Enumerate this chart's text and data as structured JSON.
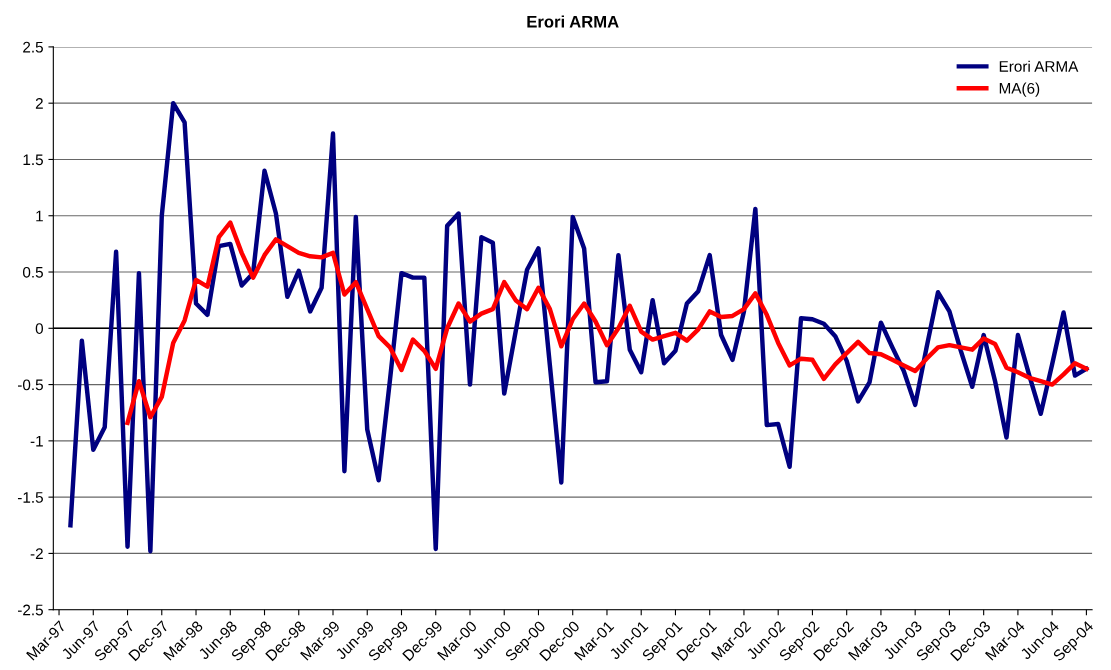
{
  "chart_data": {
    "type": "line",
    "title": "Erori ARMA",
    "categories": [
      "Mar-97",
      null,
      null,
      "Jun-97",
      null,
      null,
      "Sep-97",
      null,
      null,
      "Dec-97",
      null,
      null,
      "Mar-98",
      null,
      null,
      "Jun-98",
      null,
      null,
      "Sep-98",
      null,
      null,
      "Dec-98",
      null,
      null,
      "Mar-99",
      null,
      null,
      "Jun-99",
      null,
      null,
      "Sep-99",
      null,
      null,
      "Dec-99",
      null,
      null,
      "Mar-00",
      null,
      null,
      "Jun-00",
      null,
      null,
      "Sep-00",
      null,
      null,
      "Dec-00",
      null,
      null,
      "Mar-01",
      null,
      null,
      "Jun-01",
      null,
      null,
      "Sep-01",
      null,
      null,
      "Dec-01",
      null,
      null,
      "Mar-02",
      null,
      null,
      "Jun-02",
      null,
      null,
      "Sep-02",
      null,
      null,
      "Dec-02",
      null,
      null,
      "Mar-03",
      null,
      null,
      "Jun-03",
      null,
      null,
      "Sep-03",
      null,
      null,
      "Dec-03",
      null,
      null,
      "Mar-04",
      null,
      null,
      "Jun-04",
      null,
      null,
      "Sep-04"
    ],
    "series": [
      {
        "name": "Erori ARMA",
        "color": "#000080",
        "values": [
          null,
          -1.75,
          -0.11,
          -1.08,
          -0.88,
          0.68,
          -1.94,
          0.49,
          -1.98,
          1.0,
          2.0,
          1.83,
          0.22,
          0.12,
          0.73,
          0.75,
          0.38,
          0.49,
          1.4,
          1.02,
          0.28,
          0.51,
          0.15,
          0.36,
          1.73,
          -1.27,
          0.99,
          -0.9,
          -1.35,
          -0.45,
          0.49,
          0.45,
          0.45,
          -1.96,
          0.91,
          1.02,
          -0.5,
          0.81,
          0.76,
          -0.58,
          -0.03,
          0.52,
          0.71,
          -0.33,
          -1.37,
          0.99,
          0.71,
          -0.48,
          -0.47,
          0.65,
          -0.19,
          -0.39,
          0.25,
          -0.31,
          -0.2,
          0.22,
          0.33,
          0.65,
          -0.06,
          -0.28,
          0.15,
          1.06,
          -0.86,
          -0.85,
          -1.23,
          0.09,
          0.08,
          0.04,
          -0.07,
          -0.29,
          -0.65,
          -0.48,
          0.05,
          -0.17,
          -0.38,
          -0.68,
          -0.17,
          0.32,
          0.15,
          -0.2,
          -0.52,
          -0.06,
          -0.47,
          -0.97,
          -0.06,
          -0.42,
          -0.76,
          -0.32,
          0.14,
          -0.42,
          -0.36
        ]
      },
      {
        "name": "MA(6)",
        "color": "#ff0000",
        "values": [
          null,
          null,
          null,
          null,
          null,
          null,
          -0.84,
          -0.47,
          -0.79,
          -0.61,
          -0.13,
          0.07,
          0.43,
          0.37,
          0.81,
          0.94,
          0.67,
          0.45,
          0.65,
          0.79,
          0.73,
          0.67,
          0.64,
          0.63,
          0.67,
          0.3,
          0.41,
          0.17,
          -0.07,
          -0.17,
          -0.37,
          -0.1,
          -0.2,
          -0.36,
          0.0,
          0.22,
          0.06,
          0.13,
          0.17,
          0.41,
          0.25,
          0.17,
          0.36,
          0.17,
          -0.16,
          0.08,
          0.22,
          0.06,
          -0.15,
          0.0,
          0.2,
          -0.03,
          -0.1,
          -0.07,
          -0.04,
          -0.11,
          -0.01,
          0.15,
          0.1,
          0.11,
          0.17,
          0.31,
          0.12,
          -0.13,
          -0.33,
          -0.27,
          -0.28,
          -0.45,
          -0.32,
          -0.22,
          -0.12,
          -0.22,
          -0.23,
          -0.28,
          -0.33,
          -0.38,
          -0.27,
          -0.17,
          -0.15,
          -0.17,
          -0.19,
          -0.09,
          -0.14,
          -0.35,
          -0.39,
          -0.44,
          -0.47,
          -0.5,
          -0.41,
          -0.31,
          -0.36
        ]
      }
    ],
    "ylim": [
      -2.5,
      2.5
    ],
    "yticks": [
      -2.5,
      -2,
      -1.5,
      -1,
      -0.5,
      0,
      0.5,
      1,
      1.5,
      2,
      2.5
    ],
    "grid": "y",
    "legend": "top right",
    "marker": "none",
    "line_style": "solid"
  }
}
